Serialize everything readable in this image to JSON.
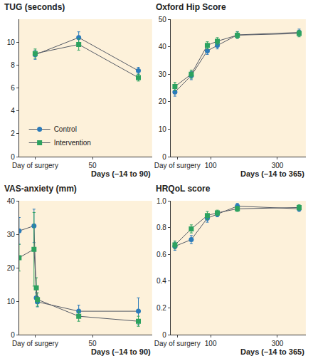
{
  "chart_data": [
    {
      "type": "line",
      "title": "TUG (seconds)",
      "x_label": "Days (–14 to 90)",
      "x": [
        0,
        38,
        90
      ],
      "xlim": [
        -14,
        102
      ],
      "xticks": [
        {
          "value": 0,
          "label": "Day of surgery"
        },
        50
      ],
      "ylim": [
        0,
        12
      ],
      "yticks": [
        0,
        2,
        4,
        6,
        8,
        10
      ],
      "legend": "lower left",
      "series": [
        {
          "name": "Control",
          "color": "#2b7bba",
          "marker": "circle",
          "values": [
            8.9,
            10.4,
            7.5
          ],
          "errors": [
            0.4,
            0.5,
            0.3
          ]
        },
        {
          "name": "Intervention",
          "color": "#2ca25f",
          "marker": "square",
          "values": [
            9.0,
            9.8,
            6.9
          ],
          "errors": [
            0.4,
            0.5,
            0.3
          ]
        }
      ]
    },
    {
      "type": "line",
      "title": "Oxford Hip Score",
      "x_label": "Days (–14 to 365)",
      "x": [
        -7,
        42,
        90,
        120,
        180,
        365
      ],
      "xlim": [
        -20,
        385
      ],
      "xticks": [
        {
          "value": 0,
          "label": "Day of surgery"
        },
        100,
        300
      ],
      "ylim": [
        0,
        50
      ],
      "yticks": [
        0,
        10,
        20,
        30,
        40,
        50
      ],
      "series": [
        {
          "name": "Control",
          "color": "#2b7bba",
          "marker": "circle",
          "values": [
            23.5,
            29.5,
            38.5,
            40.5,
            44.3,
            45.2
          ],
          "errors": [
            1.5,
            1.5,
            1.3,
            1.3,
            1.2,
            1.2
          ]
        },
        {
          "name": "Intervention",
          "color": "#2ca25f",
          "marker": "square",
          "values": [
            25.5,
            30,
            40.5,
            42,
            44.2,
            44.8
          ],
          "errors": [
            1.5,
            1.5,
            1.3,
            1.3,
            1.2,
            1.2
          ]
        }
      ]
    },
    {
      "type": "line",
      "title": "VAS-anxiety (mm)",
      "x_label": "Days (–14 to 90)",
      "x": [
        -14,
        -1,
        1,
        2,
        38,
        90
      ],
      "xlim": [
        -14,
        102
      ],
      "xticks": [
        {
          "value": 0,
          "label": "Day of surgery"
        },
        50
      ],
      "ylim": [
        0,
        40
      ],
      "yticks": [
        0,
        10,
        20,
        30,
        40
      ],
      "series": [
        {
          "name": "Control",
          "color": "#2b7bba",
          "marker": "circle",
          "values": [
            31,
            32.5,
            11,
            9.8,
            7,
            7
          ],
          "errors": [
            4,
            5,
            1.5,
            1.5,
            1.8,
            4
          ]
        },
        {
          "name": "Intervention",
          "color": "#2ca25f",
          "marker": "square",
          "values": [
            23,
            25.5,
            14,
            10.5,
            5.5,
            4
          ],
          "errors": [
            4,
            11,
            3,
            2,
            1.5,
            1.5
          ]
        }
      ]
    },
    {
      "type": "line",
      "title": "HRQoL score",
      "x_label": "Days (–14 to 365)",
      "x": [
        -7,
        42,
        90,
        120,
        180,
        365
      ],
      "xlim": [
        -20,
        385
      ],
      "xticks": [
        {
          "value": 0,
          "label": "Day of surgery"
        },
        100,
        300
      ],
      "ylim": [
        0,
        1
      ],
      "yticks": [
        0,
        0.2,
        0.4,
        0.6,
        0.8,
        {
          "value": 1,
          "label": "1.0"
        }
      ],
      "series": [
        {
          "name": "Control",
          "color": "#2b7bba",
          "marker": "circle",
          "values": [
            0.66,
            0.71,
            0.87,
            0.9,
            0.96,
            0.94
          ],
          "errors": [
            0.03,
            0.03,
            0.03,
            0.02,
            0.02,
            0.02
          ]
        },
        {
          "name": "Intervention",
          "color": "#2ca25f",
          "marker": "square",
          "values": [
            0.67,
            0.79,
            0.89,
            0.91,
            0.94,
            0.95
          ],
          "errors": [
            0.03,
            0.03,
            0.03,
            0.02,
            0.02,
            0.02
          ]
        }
      ]
    }
  ]
}
